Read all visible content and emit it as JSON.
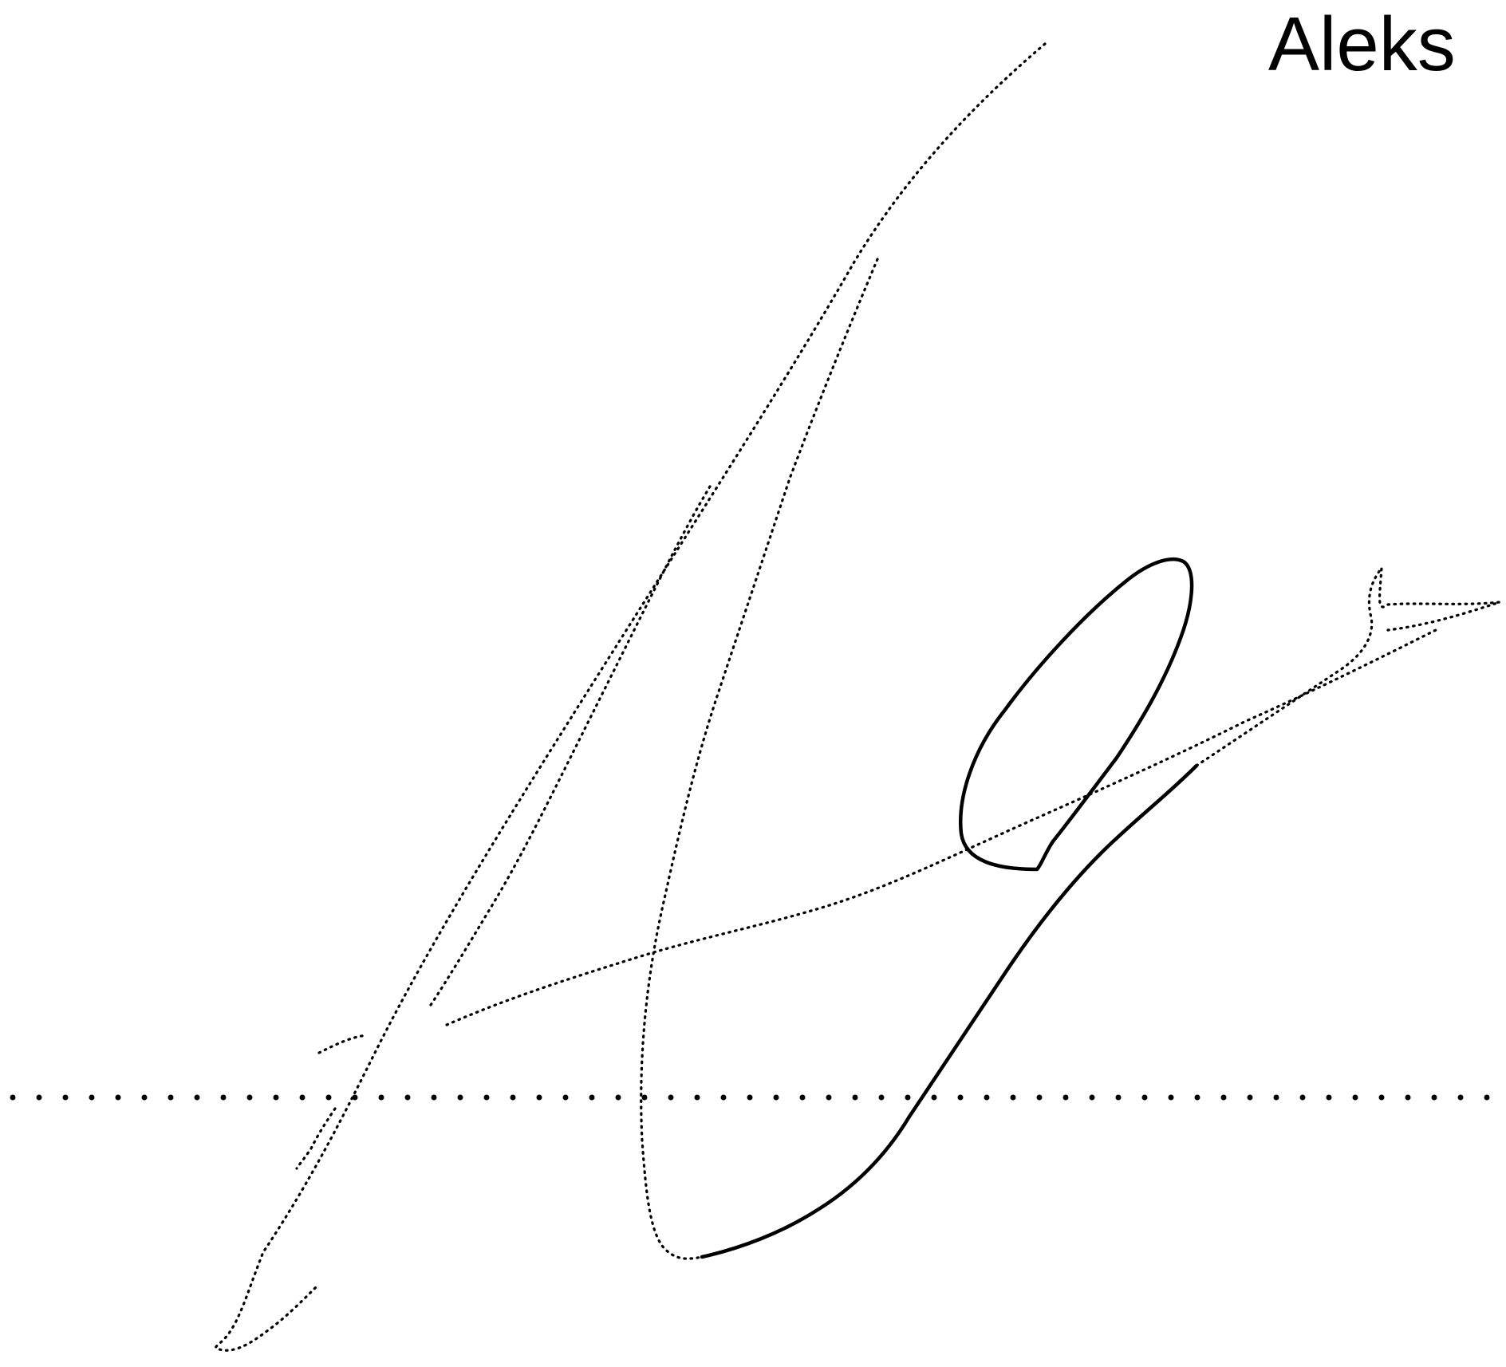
{
  "signer": {
    "name_text": "Aleks"
  },
  "signature": {
    "ink_color": "#000000",
    "line_style": "dotted"
  }
}
